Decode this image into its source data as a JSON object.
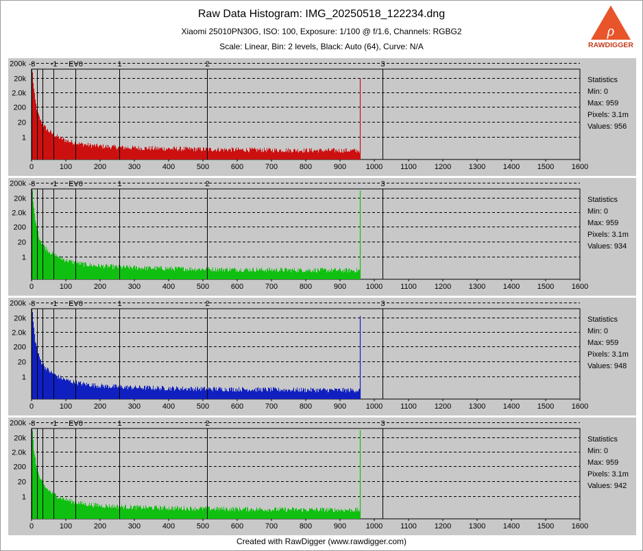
{
  "header": {
    "title": "Raw Data Histogram: IMG_20250518_122234.dng",
    "subtitle1": "Xiaomi 25010PN30G, ISO: 100, Exposure: 1/100 @ f/1.6, Channels: RGBG2",
    "subtitle2": "Scale: Linear, Bin: 2 levels, Black: Auto (64), Curve: N/A"
  },
  "logo": {
    "text": "RAWDIGGER",
    "icon": "rawdigger-logo-icon",
    "accent": "#e8552a"
  },
  "footer": "Created with RawDigger (www.rawdigger.com)",
  "colors": {
    "panel_bg": "#c8c8c8",
    "red": "#cc1010",
    "green": "#10c010",
    "blue": "#1020c0"
  },
  "chart_data": [
    {
      "type": "bar",
      "channel": "red",
      "color": "#cc1010",
      "x_ticks": [
        0,
        100,
        200,
        300,
        400,
        500,
        600,
        700,
        800,
        900,
        1000,
        1100,
        1200,
        1300,
        1400,
        1500,
        1600
      ],
      "xlim": [
        0,
        1600
      ],
      "y_ticks": [
        "1",
        "20",
        "200",
        "2.0k",
        "20k",
        "200k"
      ],
      "ev_ticks": [
        {
          "label": "-8",
          "x": 0.25
        },
        {
          "label": "",
          "x": 16
        },
        {
          "label": "",
          "x": 32
        },
        {
          "label": "-1",
          "x": 64
        },
        {
          "label": "EV0",
          "x": 128
        },
        {
          "label": "1",
          "x": 256
        },
        {
          "label": "2",
          "x": 512
        },
        {
          "label": "3",
          "x": 1024
        }
      ],
      "peak_level": 959,
      "peak_height": 0.9,
      "stats_title": "Statistics",
      "stats": [
        "Min: 0",
        "Max: 959",
        "Pixels: 3.1m",
        "Values: 956"
      ]
    },
    {
      "type": "bar",
      "channel": "green",
      "color": "#10c010",
      "x_ticks": [
        0,
        100,
        200,
        300,
        400,
        500,
        600,
        700,
        800,
        900,
        1000,
        1100,
        1200,
        1300,
        1400,
        1500,
        1600
      ],
      "xlim": [
        0,
        1600
      ],
      "y_ticks": [
        "1",
        "20",
        "200",
        "2.0k",
        "20k",
        "200k"
      ],
      "ev_ticks": [
        {
          "label": "-8",
          "x": 0.25
        },
        {
          "label": "",
          "x": 16
        },
        {
          "label": "",
          "x": 32
        },
        {
          "label": "-1",
          "x": 64
        },
        {
          "label": "EV0",
          "x": 128
        },
        {
          "label": "1",
          "x": 256
        },
        {
          "label": "2",
          "x": 512
        },
        {
          "label": "3",
          "x": 1024
        }
      ],
      "peak_level": 959,
      "peak_height": 0.98,
      "stats_title": "Statistics",
      "stats": [
        "Min: 0",
        "Max: 959",
        "Pixels: 3.1m",
        "Values: 934"
      ]
    },
    {
      "type": "bar",
      "channel": "blue",
      "color": "#1020c0",
      "x_ticks": [
        0,
        100,
        200,
        300,
        400,
        500,
        600,
        700,
        800,
        900,
        1000,
        1100,
        1200,
        1300,
        1400,
        1500,
        1600
      ],
      "xlim": [
        0,
        1600
      ],
      "y_ticks": [
        "1",
        "20",
        "200",
        "2.0k",
        "20k",
        "200k"
      ],
      "ev_ticks": [
        {
          "label": "-8",
          "x": 0.25
        },
        {
          "label": "",
          "x": 16
        },
        {
          "label": "",
          "x": 32
        },
        {
          "label": "-1",
          "x": 64
        },
        {
          "label": "EV0",
          "x": 128
        },
        {
          "label": "1",
          "x": 256
        },
        {
          "label": "2",
          "x": 512
        },
        {
          "label": "3",
          "x": 1024
        }
      ],
      "peak_level": 959,
      "peak_height": 0.92,
      "stats_title": "Statistics",
      "stats": [
        "Min: 0",
        "Max: 959",
        "Pixels: 3.1m",
        "Values: 948"
      ]
    },
    {
      "type": "bar",
      "channel": "green2",
      "color": "#10c010",
      "x_ticks": [
        0,
        100,
        200,
        300,
        400,
        500,
        600,
        700,
        800,
        900,
        1000,
        1100,
        1200,
        1300,
        1400,
        1500,
        1600
      ],
      "xlim": [
        0,
        1600
      ],
      "y_ticks": [
        "1",
        "20",
        "200",
        "2.0k",
        "20k",
        "200k"
      ],
      "ev_ticks": [
        {
          "label": "-8",
          "x": 0.25
        },
        {
          "label": "",
          "x": 16
        },
        {
          "label": "",
          "x": 32
        },
        {
          "label": "-1",
          "x": 64
        },
        {
          "label": "EV0",
          "x": 128
        },
        {
          "label": "1",
          "x": 256
        },
        {
          "label": "2",
          "x": 512
        },
        {
          "label": "3",
          "x": 1024
        }
      ],
      "peak_level": 959,
      "peak_height": 0.98,
      "stats_title": "Statistics",
      "stats": [
        "Min: 0",
        "Max: 959",
        "Pixels: 3.1m",
        "Values: 942"
      ]
    }
  ]
}
